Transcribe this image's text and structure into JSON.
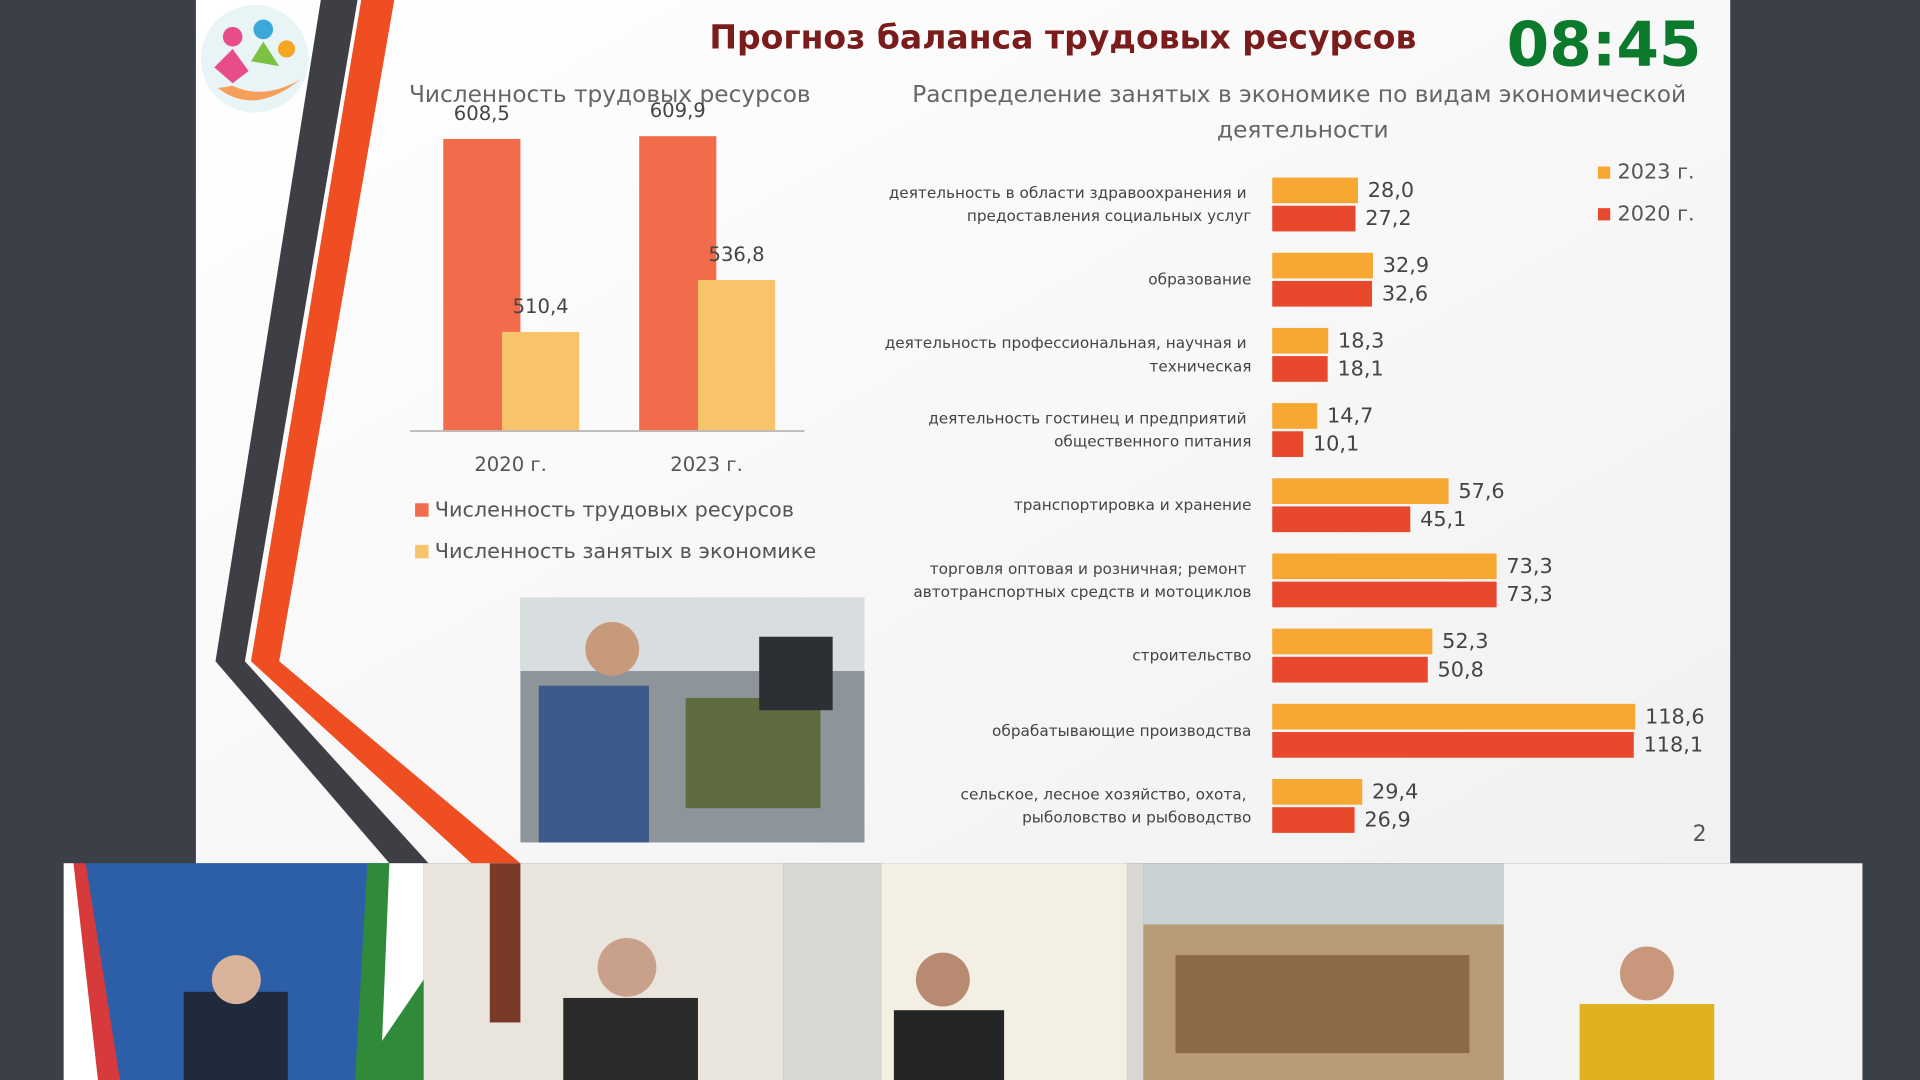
{
  "title": "Прогноз баланса трудовых ресурсов",
  "clock": "08:45",
  "page_number": "2",
  "chart_data": [
    {
      "type": "bar",
      "title": "Численность трудовых ресурсов",
      "categories": [
        "2020 г.",
        "2023 г."
      ],
      "series": [
        {
          "name": "Численность трудовых ресурсов",
          "color": "#f26b4a",
          "values": [
            608.5,
            609.9
          ],
          "value_labels": [
            "608,5",
            "609,9"
          ]
        },
        {
          "name": "Численность занятых в экономике",
          "color": "#f8c46b",
          "values": [
            510.4,
            536.8
          ],
          "value_labels": [
            "510,4",
            "536,8"
          ]
        }
      ],
      "ylim": [
        460,
        620
      ]
    },
    {
      "type": "barh",
      "title": "Распределение занятых в экономике по видам экономической деятельности",
      "categories": [
        "деятельность в области здравоохранения и предоставления социальных услуг",
        "образование",
        "деятельность профессиональная, научная и техническая",
        "деятельность гостинец и предприятий общественного питания",
        "транспортировка и хранение",
        "торговля оптовая и розничная; ремонт автотранспортных средств и мотоциклов",
        "строительство",
        "обрабатывающие производства",
        "сельское, лесное хозяйство, охота, рыболовство и рыбоводство"
      ],
      "series": [
        {
          "name": "2023 г.",
          "color": "#f6a833",
          "values": [
            28.0,
            32.9,
            18.3,
            14.7,
            57.6,
            73.3,
            52.3,
            118.6,
            29.4
          ],
          "value_labels": [
            "28,0",
            "32,9",
            "18,3",
            "14,7",
            "57,6",
            "73,3",
            "52,3",
            "118,6",
            "29,4"
          ]
        },
        {
          "name": "2020 г.",
          "color": "#e8482b",
          "values": [
            27.2,
            32.6,
            18.1,
            10.1,
            45.1,
            73.3,
            50.8,
            118.1,
            26.9
          ],
          "value_labels": [
            "27,2",
            "32,6",
            "18,1",
            "10,1",
            "45,1",
            "73,3",
            "50,8",
            "118,1",
            "26,9"
          ]
        }
      ],
      "xlim": [
        0,
        120
      ]
    }
  ]
}
